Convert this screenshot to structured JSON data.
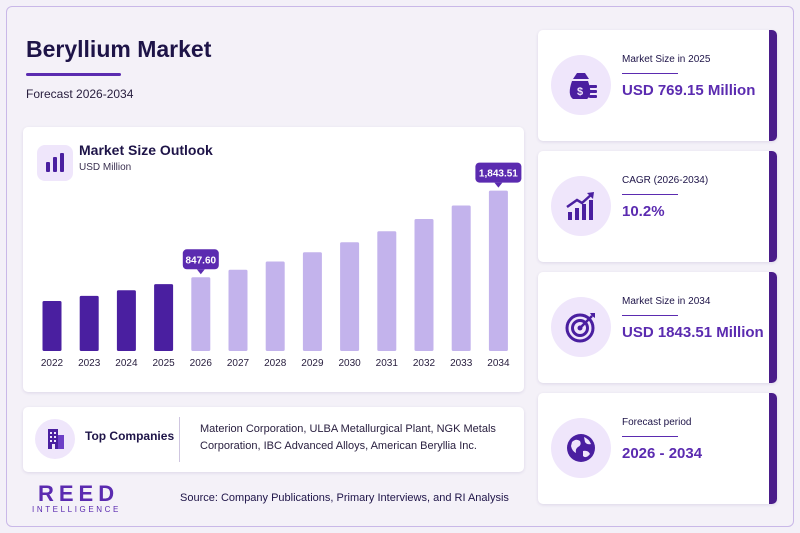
{
  "header": {
    "title": "Beryllium Market",
    "subtitle": "Forecast 2026-2034"
  },
  "chart": {
    "title": "Market Size Outlook",
    "unit": "USD Million"
  },
  "chart_data": {
    "type": "bar",
    "categories": [
      "2022",
      "2023",
      "2024",
      "2025",
      "2026",
      "2027",
      "2028",
      "2029",
      "2030",
      "2031",
      "2032",
      "2033",
      "2034"
    ],
    "values": [
      575,
      633,
      698,
      769.15,
      847.6,
      934,
      1029,
      1134,
      1250,
      1377,
      1517,
      1672,
      1843.51
    ],
    "forecast_from": "2026",
    "callouts": [
      {
        "category": "2026",
        "label": "847.60"
      },
      {
        "category": "2034",
        "label": "1,843.51"
      }
    ],
    "ylim": [
      0,
      2000
    ],
    "colors": {
      "historical": "#4a1fa0",
      "forecast": "#c3b3ec",
      "callout": "#5b2bb0"
    },
    "grid": false,
    "legend": "none"
  },
  "companies": {
    "title": "Top Companies",
    "text": "Materion Corporation, ULBA Metallurgical Plant, NGK Metals Corporation, IBC Advanced Alloys, American Beryllia Inc."
  },
  "stats": [
    {
      "label": "Market Size in 2025",
      "value": "USD 769.15 Million",
      "icon": "money-bag-icon"
    },
    {
      "label": "CAGR (2026-2034)",
      "value": "10.2%",
      "icon": "growth-chart-icon"
    },
    {
      "label": "Market Size in 2034",
      "value": "USD 1843.51 Million",
      "icon": "target-icon"
    },
    {
      "label": "Forecast period",
      "value": "2026 - 2034",
      "icon": "globe-icon"
    }
  ],
  "brand": {
    "logo": "REED",
    "logo_sub": "INTELLIGENCE",
    "accent": "#5b2bb0"
  },
  "footer": {
    "source": "Source: Company Publications, Primary Interviews, and RI Analysis"
  }
}
